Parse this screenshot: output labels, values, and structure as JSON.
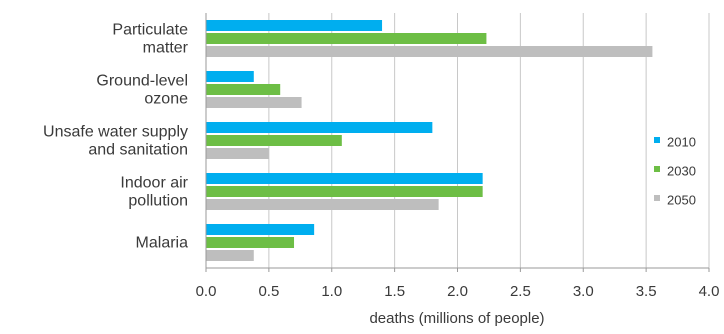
{
  "chart_data": {
    "type": "bar",
    "orientation": "horizontal",
    "categories": [
      [
        "Particulate",
        "matter"
      ],
      [
        "Ground-level",
        "ozone"
      ],
      [
        "Unsafe water supply",
        "and sanitation"
      ],
      [
        "Indoor air",
        "pollution"
      ],
      [
        "Malaria"
      ]
    ],
    "series": [
      {
        "name": "2010",
        "color": "#00AEEF",
        "values": [
          1.4,
          0.38,
          1.8,
          2.2,
          0.86
        ]
      },
      {
        "name": "2030",
        "color": "#6DBE45",
        "values": [
          2.23,
          0.59,
          1.08,
          2.2,
          0.7
        ]
      },
      {
        "name": "2050",
        "color": "#BEBEBE",
        "values": [
          3.55,
          0.76,
          0.5,
          1.85,
          0.38
        ]
      }
    ],
    "xlabel": "deaths (millions of people)",
    "ylabel": "",
    "title": "",
    "xlim": [
      0,
      4.0
    ],
    "xticks": [
      "0.0",
      "0.5",
      "1.0",
      "1.5",
      "2.0",
      "2.5",
      "3.0",
      "3.5",
      "4.0"
    ],
    "grid": "vertical",
    "legend": "right"
  }
}
